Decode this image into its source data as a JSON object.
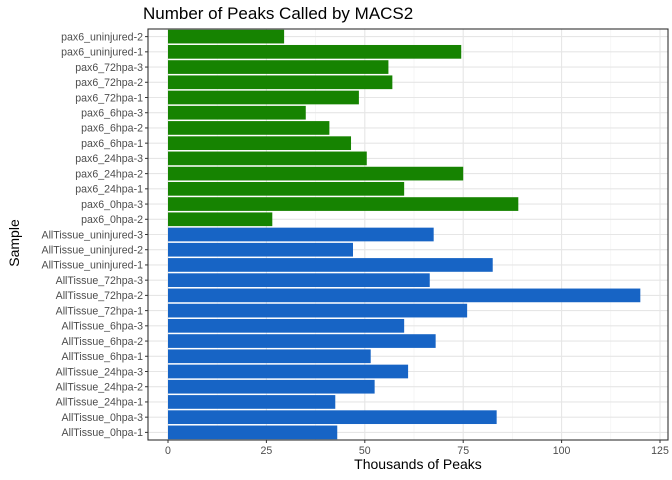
{
  "chart_data": {
    "type": "bar",
    "orientation": "horizontal",
    "title": "Number of Peaks Called by MACS2",
    "xlabel": "Thousands of Peaks",
    "ylabel": "Sample",
    "xlim": [
      0,
      125
    ],
    "xticks": [
      0,
      25,
      50,
      75,
      100,
      125
    ],
    "grid": true,
    "legend": "none",
    "categories": [
      "AllTissue_0hpa-1",
      "AllTissue_0hpa-3",
      "AllTissue_24hpa-1",
      "AllTissue_24hpa-2",
      "AllTissue_24hpa-3",
      "AllTissue_6hpa-1",
      "AllTissue_6hpa-2",
      "AllTissue_6hpa-3",
      "AllTissue_72hpa-1",
      "AllTissue_72hpa-2",
      "AllTissue_72hpa-3",
      "AllTissue_uninjured-1",
      "AllTissue_uninjured-2",
      "AllTissue_uninjured-3",
      "pax6_0hpa-2",
      "pax6_0hpa-3",
      "pax6_24hpa-1",
      "pax6_24hpa-2",
      "pax6_24hpa-3",
      "pax6_6hpa-1",
      "pax6_6hpa-2",
      "pax6_6hpa-3",
      "pax6_72hpa-1",
      "pax6_72hpa-2",
      "pax6_72hpa-3",
      "pax6_uninjured-1",
      "pax6_uninjured-2"
    ],
    "values": [
      43,
      83.5,
      42.5,
      52.5,
      61,
      51.5,
      68,
      60,
      76,
      120,
      66.5,
      82.5,
      47,
      67.5,
      26.5,
      89,
      60,
      75,
      50.5,
      46.5,
      41,
      35,
      48.5,
      57,
      56,
      74.5,
      29.5
    ],
    "colors": [
      "#1764c5",
      "#1764c5",
      "#1764c5",
      "#1764c5",
      "#1764c5",
      "#1764c5",
      "#1764c5",
      "#1764c5",
      "#1764c5",
      "#1764c5",
      "#1764c5",
      "#1764c5",
      "#1764c5",
      "#1764c5",
      "#168301",
      "#168301",
      "#168301",
      "#168301",
      "#168301",
      "#168301",
      "#168301",
      "#168301",
      "#168301",
      "#168301",
      "#168301",
      "#168301",
      "#168301"
    ]
  }
}
